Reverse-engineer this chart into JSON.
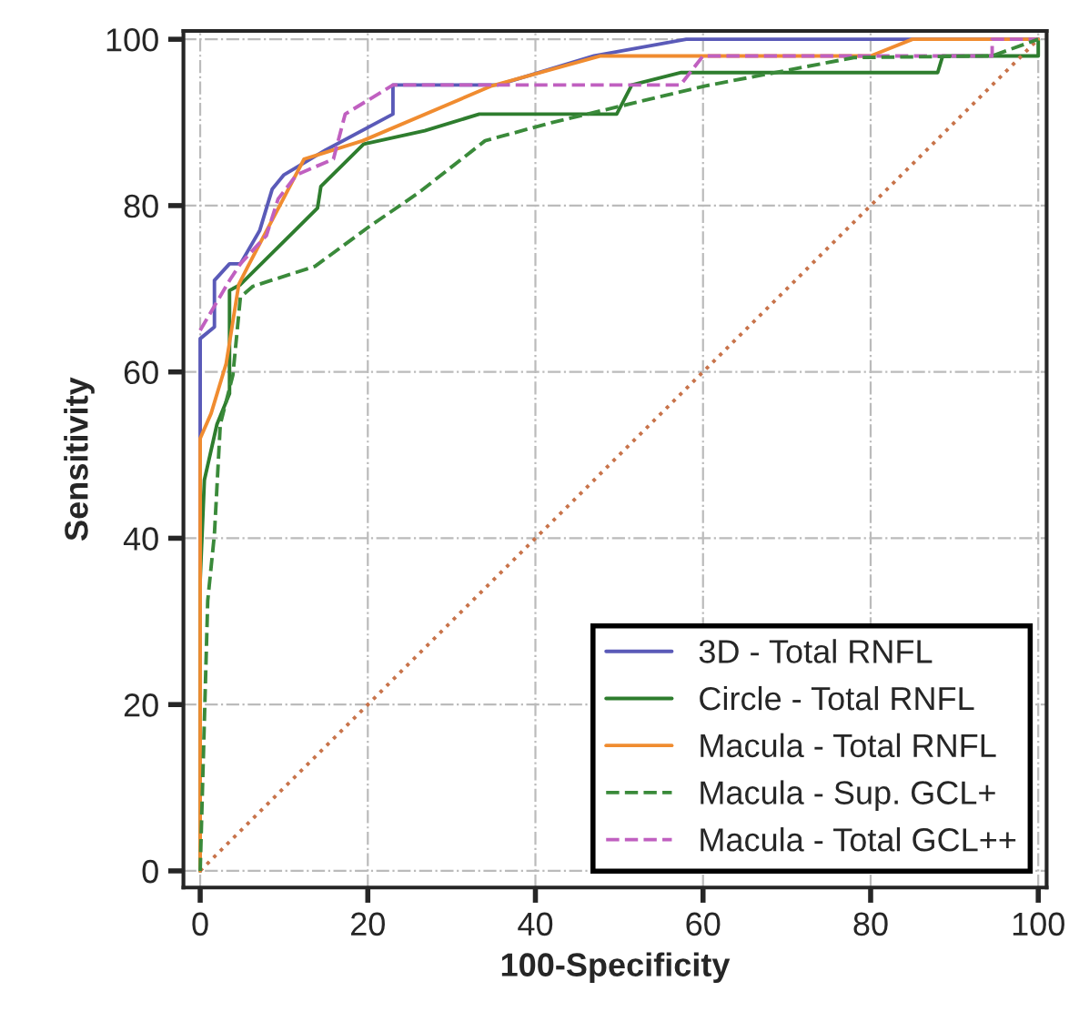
{
  "chart_data": {
    "type": "line",
    "xlabel": "100-Specificity",
    "ylabel": "Sensitivity",
    "xlim": [
      -2,
      101
    ],
    "ylim": [
      -2,
      101
    ],
    "xticks": [
      0,
      20,
      40,
      60,
      80,
      100
    ],
    "yticks": [
      0,
      20,
      40,
      60,
      80,
      100
    ],
    "grid": true,
    "legend": "bottom right",
    "series": [
      {
        "name": "3D - Total RNFL",
        "color": "#5a5ab8",
        "line_style": "solid",
        "x": [
          0,
          0,
          1.7,
          1.7,
          3.5,
          4.8,
          7.1,
          8.6,
          10,
          15,
          23,
          23,
          35.5,
          47,
          58,
          100
        ],
        "values": [
          0,
          64,
          65.4,
          71,
          73,
          73,
          77,
          82,
          83.7,
          86.7,
          91,
          94.5,
          94.5,
          98,
          100,
          100
        ]
      },
      {
        "name": "Circle - Total RNFL",
        "color": "#2e7d2e",
        "line_style": "solid",
        "x": [
          0,
          0,
          0.5,
          2,
          3.5,
          3.5,
          4.8,
          14,
          14.4,
          19.5,
          26.8,
          33.3,
          49.7,
          51.5,
          57.4,
          88,
          88.6,
          100,
          100
        ],
        "values": [
          0,
          35,
          47,
          53.7,
          57.4,
          69.8,
          70.5,
          79.7,
          82.3,
          87.4,
          89,
          91,
          91,
          94.5,
          96,
          96,
          98,
          98,
          100
        ]
      },
      {
        "name": "Macula - Total RNFL",
        "color": "#f08c30",
        "line_style": "solid",
        "x": [
          0,
          0,
          1.3,
          3.1,
          4.6,
          5.7,
          12.4,
          13.7,
          19.4,
          34.8,
          47.8,
          80,
          85,
          100
        ],
        "values": [
          0,
          52,
          55,
          61,
          70.5,
          72.7,
          85.6,
          86,
          87.8,
          94.4,
          98,
          98,
          100,
          100
        ]
      },
      {
        "name": "Macula - Sup. GCL+",
        "color": "#3a8a3a",
        "line_style": "dashed",
        "x": [
          0,
          0.9,
          1.7,
          2.4,
          3.9,
          4.8,
          6.3,
          13.7,
          20.2,
          26,
          34,
          42,
          60.3,
          78,
          94.5,
          100
        ],
        "values": [
          0,
          32.5,
          40.5,
          53.7,
          59.6,
          69,
          70.3,
          72.7,
          77.5,
          81.5,
          87.8,
          90,
          94.4,
          97.8,
          98,
          100
        ]
      },
      {
        "name": "Macula - Total GCL++",
        "color": "#c060c0",
        "line_style": "dashed",
        "x": [
          0,
          3.5,
          4.8,
          7.9,
          9.3,
          11.5,
          15.9,
          17.3,
          23,
          57.3,
          60,
          94.5,
          94.5,
          100
        ],
        "values": [
          65,
          71,
          73,
          76.4,
          80.8,
          83.7,
          85.6,
          91,
          94.5,
          94.5,
          98,
          98,
          100,
          100
        ]
      },
      {
        "color": "#c8734a",
        "line_style": "dotted",
        "x": [
          0,
          100
        ],
        "values": [
          0,
          100
        ]
      }
    ]
  }
}
